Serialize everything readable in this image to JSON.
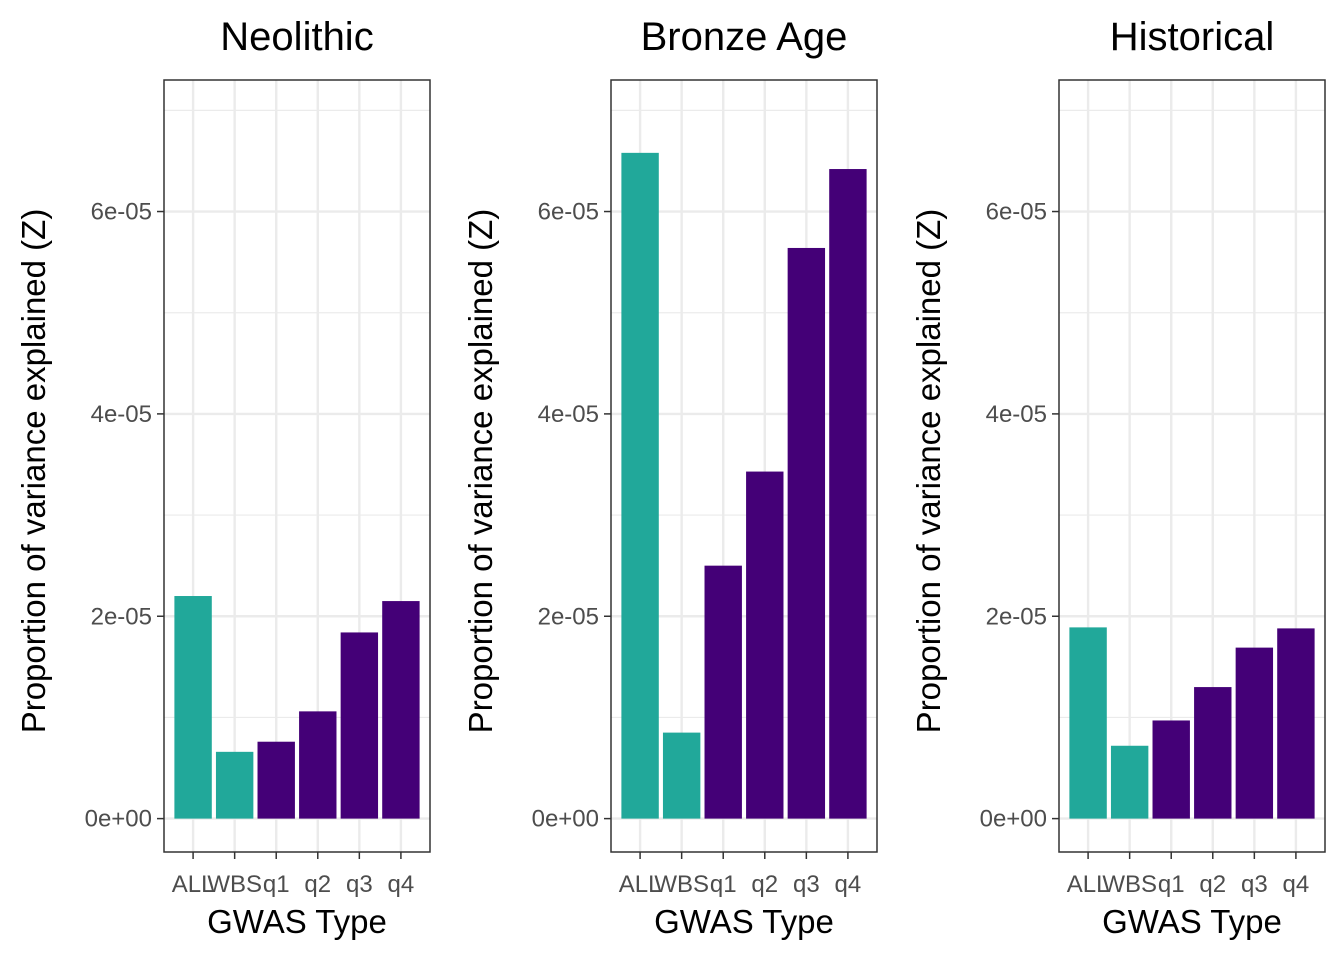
{
  "chart_data": [
    {
      "type": "bar",
      "title": "Neolithic",
      "xlabel": "GWAS Type",
      "ylabel": "Proportion of variance explained (Z)",
      "categories": [
        "ALL",
        "WBS",
        "q1",
        "q2",
        "q3",
        "q4"
      ],
      "values": [
        2.2e-05,
        6.6e-06,
        7.6e-06,
        1.06e-05,
        1.84e-05,
        2.15e-05
      ],
      "bar_colors": [
        "#21A89A",
        "#21A89A",
        "#440077",
        "#440077",
        "#440077",
        "#440077"
      ],
      "ylim": [
        -3.3e-06,
        7.3e-05
      ],
      "yticks": [
        0,
        2e-05,
        4e-05,
        6e-05
      ],
      "ytick_labels": [
        "0e+00",
        "2e-05",
        "4e-05",
        "6e-05"
      ],
      "grid": true
    },
    {
      "type": "bar",
      "title": "Bronze Age",
      "xlabel": "GWAS Type",
      "ylabel": "Proportion of variance explained (Z)",
      "categories": [
        "ALL",
        "WBS",
        "q1",
        "q2",
        "q3",
        "q4"
      ],
      "values": [
        6.58e-05,
        8.5e-06,
        2.5e-05,
        3.43e-05,
        5.64e-05,
        6.42e-05
      ],
      "bar_colors": [
        "#21A89A",
        "#21A89A",
        "#440077",
        "#440077",
        "#440077",
        "#440077"
      ],
      "ylim": [
        -3.3e-06,
        7.3e-05
      ],
      "yticks": [
        0,
        2e-05,
        4e-05,
        6e-05
      ],
      "ytick_labels": [
        "0e+00",
        "2e-05",
        "4e-05",
        "6e-05"
      ],
      "grid": true
    },
    {
      "type": "bar",
      "title": "Historical",
      "xlabel": "GWAS Type",
      "ylabel": "Proportion of variance explained (Z)",
      "categories": [
        "ALL",
        "WBS",
        "q1",
        "q2",
        "q3",
        "q4"
      ],
      "values": [
        1.89e-05,
        7.2e-06,
        9.7e-06,
        1.3e-05,
        1.69e-05,
        1.88e-05
      ],
      "bar_colors": [
        "#21A89A",
        "#21A89A",
        "#440077",
        "#440077",
        "#440077",
        "#440077"
      ],
      "ylim": [
        -3.3e-06,
        7.3e-05
      ],
      "yticks": [
        0,
        2e-05,
        4e-05,
        6e-05
      ],
      "ytick_labels": [
        "0e+00",
        "2e-05",
        "4e-05",
        "6e-05"
      ],
      "grid": true
    }
  ]
}
